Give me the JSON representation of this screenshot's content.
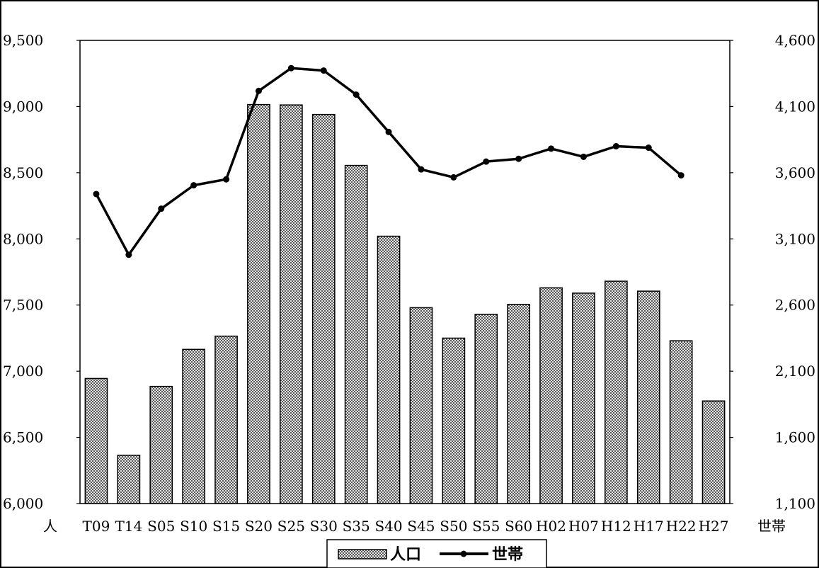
{
  "chart_data": {
    "type": "bar",
    "categories": [
      "T09",
      "T14",
      "S05",
      "S10",
      "S15",
      "S20",
      "S25",
      "S30",
      "S35",
      "S40",
      "S45",
      "S50",
      "S55",
      "S60",
      "H02",
      "H07",
      "H12",
      "H17",
      "H22",
      "H27"
    ],
    "series": [
      {
        "name": "人口",
        "type": "bar",
        "axis": "left",
        "values": [
          6945,
          6365,
          6885,
          7165,
          7265,
          9015,
          9012,
          8940,
          8555,
          8020,
          7480,
          7250,
          7430,
          7505,
          7630,
          7590,
          7680,
          7605,
          7230,
          6775
        ]
      },
      {
        "name": "世帯",
        "type": "line",
        "axis": "right",
        "values": [
          3439,
          2980,
          3328,
          3505,
          3550,
          4218,
          4390,
          4372,
          4190,
          3908,
          3625,
          3565,
          3684,
          3705,
          3782,
          3720,
          3800,
          3789,
          3580,
          null
        ]
      }
    ],
    "y_left": {
      "label": "人",
      "range": [
        6000,
        9500
      ],
      "ticks": [
        "6,000",
        "6,500",
        "7,000",
        "7,500",
        "8,000",
        "8,500",
        "9,000",
        "9,500"
      ]
    },
    "y_right": {
      "label": "世帯",
      "range": [
        1100,
        4600
      ],
      "ticks": [
        "1,100",
        "1,600",
        "2,100",
        "2,600",
        "3,100",
        "3,600",
        "4,100",
        "4,600"
      ]
    },
    "grid": false,
    "legend": {
      "placement": "bottom-center",
      "entries": [
        "人口",
        "世帯"
      ]
    },
    "colors": {
      "bar_fill": "#8c8c8c",
      "bar_stroke": "#000000",
      "line": "#000000"
    }
  }
}
